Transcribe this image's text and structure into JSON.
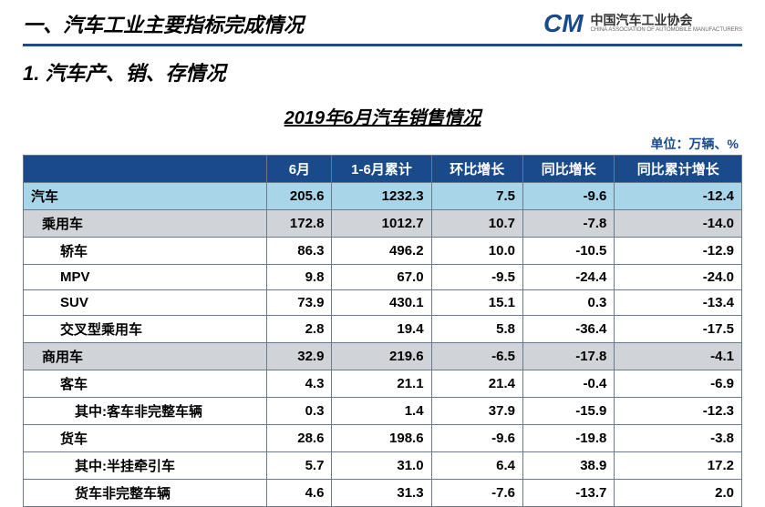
{
  "header": {
    "main_title": "一、汽车工业主要指标完成情况",
    "logo_mark": "CM",
    "logo_cn": "中国汽车工业协会",
    "logo_en": "CHINA ASSOCIATION OF AUTOMOBILE MANUFACTURERS"
  },
  "subtitle": "1. 汽车产、销、存情况",
  "table": {
    "title": "2019年6月汽车销售情况",
    "unit": "单位：万辆、%",
    "columns": [
      "",
      "6月",
      "1-6月累计",
      "环比增长",
      "同比增长",
      "同比累计增长"
    ],
    "rows": [
      {
        "label": "汽车",
        "indent": 0,
        "style": "highlight",
        "vals": [
          "205.6",
          "1232.3",
          "7.5",
          "-9.6",
          "-12.4"
        ]
      },
      {
        "label": "乘用车",
        "indent": 1,
        "style": "gray",
        "vals": [
          "172.8",
          "1012.7",
          "10.7",
          "-7.8",
          "-14.0"
        ]
      },
      {
        "label": "轿车",
        "indent": 2,
        "style": "white",
        "vals": [
          "86.3",
          "496.2",
          "10.0",
          "-10.5",
          "-12.9"
        ]
      },
      {
        "label": "MPV",
        "indent": 2,
        "style": "white",
        "vals": [
          "9.8",
          "67.0",
          "-9.5",
          "-24.4",
          "-24.0"
        ]
      },
      {
        "label": "SUV",
        "indent": 2,
        "style": "white",
        "vals": [
          "73.9",
          "430.1",
          "15.1",
          "0.3",
          "-13.4"
        ]
      },
      {
        "label": "交叉型乘用车",
        "indent": 2,
        "style": "white",
        "vals": [
          "2.8",
          "19.4",
          "5.8",
          "-36.4",
          "-17.5"
        ]
      },
      {
        "label": "商用车",
        "indent": 1,
        "style": "gray",
        "vals": [
          "32.9",
          "219.6",
          "-6.5",
          "-17.8",
          "-4.1"
        ]
      },
      {
        "label": "客车",
        "indent": 2,
        "style": "white",
        "vals": [
          "4.3",
          "21.1",
          "21.4",
          "-0.4",
          "-6.9"
        ]
      },
      {
        "label": "其中:客车非完整车辆",
        "indent": 3,
        "style": "white",
        "vals": [
          "0.3",
          "1.4",
          "37.9",
          "-15.9",
          "-12.3"
        ]
      },
      {
        "label": "货车",
        "indent": 2,
        "style": "white",
        "vals": [
          "28.6",
          "198.6",
          "-9.6",
          "-19.8",
          "-3.8"
        ]
      },
      {
        "label": "其中:半挂牵引车",
        "indent": 3,
        "style": "white",
        "vals": [
          "5.7",
          "31.0",
          "6.4",
          "38.9",
          "17.2"
        ]
      },
      {
        "label": "货车非完整车辆",
        "indent": 3,
        "style": "white",
        "vals": [
          "4.6",
          "31.3",
          "-7.6",
          "-13.7",
          "2.0"
        ]
      }
    ]
  }
}
